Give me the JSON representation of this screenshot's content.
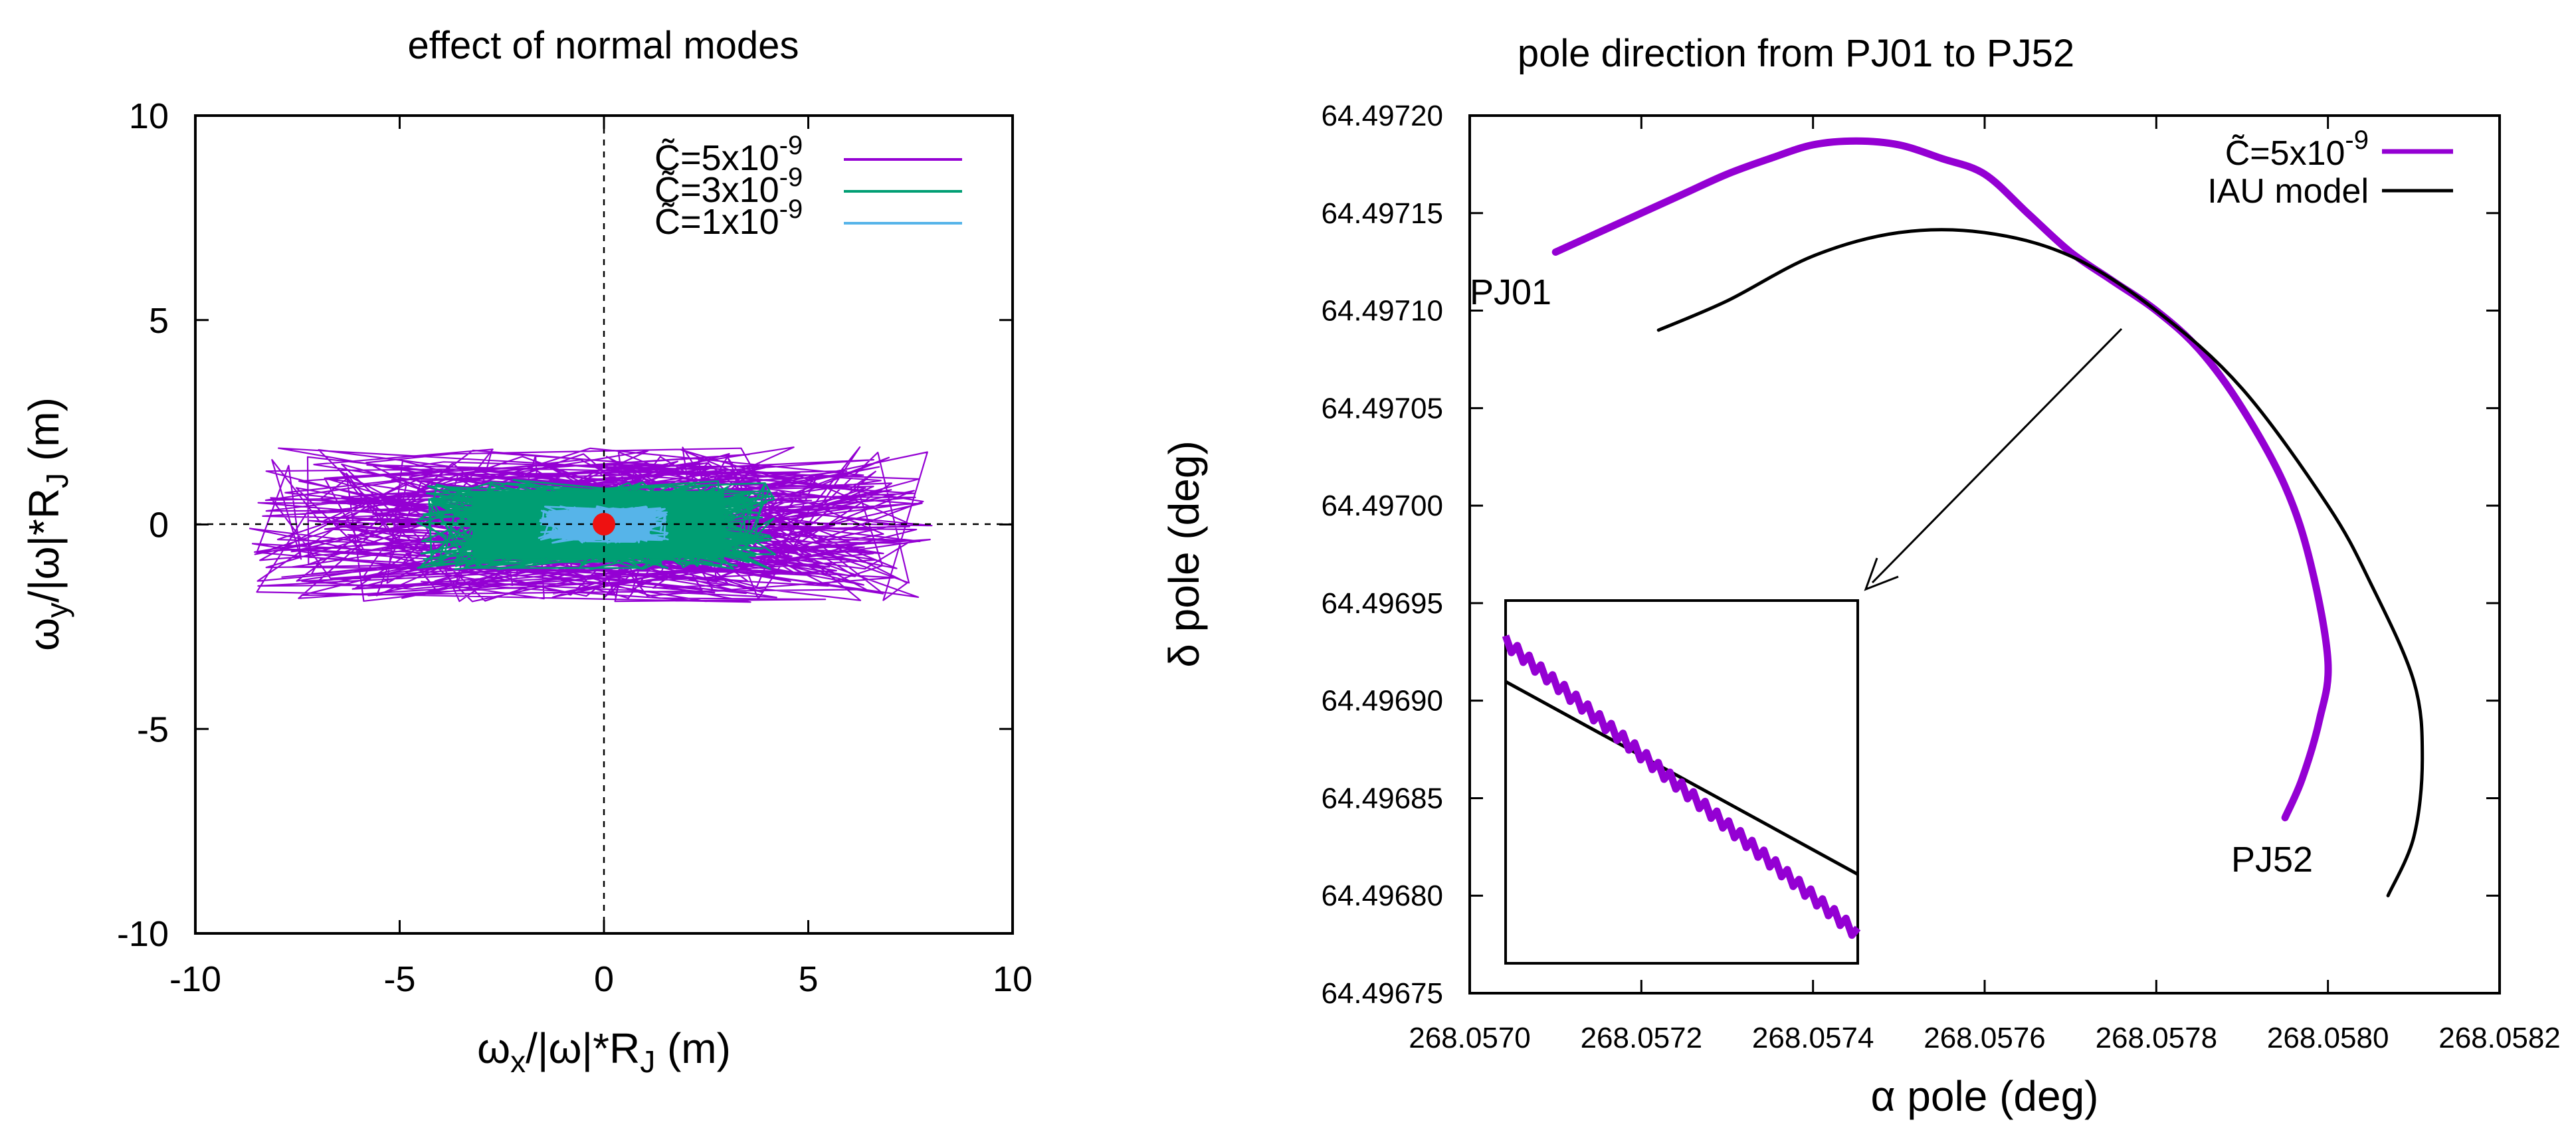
{
  "colors": {
    "purple": "#9400d3",
    "green": "#009e73",
    "blue": "#56b4e9",
    "red": "#ee1111",
    "black": "#000000"
  },
  "chart_data": [
    {
      "type": "scatter",
      "title": "effect of normal modes",
      "xlabel": "ωx/|ω|*RJ (m)",
      "ylabel": "ωy/|ω|*RJ (m)",
      "xlim": [
        -10,
        10
      ],
      "ylim": [
        -10,
        10
      ],
      "xticks": [
        -10,
        -5,
        0,
        5,
        10
      ],
      "yticks": [
        -10,
        -5,
        0,
        5,
        10
      ],
      "zero_lines": "dashed",
      "legend_position": "top-right",
      "series": [
        {
          "name": "C̃=5x10-9",
          "color": "#9400d3",
          "x_range": [
            -8.7,
            8.1
          ],
          "y_range": [
            -1.9,
            1.9
          ]
        },
        {
          "name": "C̃=3x10-9",
          "color": "#009e73",
          "x_range": [
            -4.6,
            4.2
          ],
          "y_range": [
            -1.1,
            1.1
          ]
        },
        {
          "name": "C̃=1x10-9",
          "color": "#56b4e9",
          "x_range": [
            -1.6,
            1.6
          ],
          "y_range": [
            -0.45,
            0.45
          ]
        }
      ],
      "marker": {
        "x": 0,
        "y": 0,
        "color": "#ee1111"
      }
    },
    {
      "type": "line",
      "title": "pole direction from PJ01 to PJ52",
      "xlabel": "α pole (deg)",
      "ylabel": "δ pole (deg)",
      "xlim": [
        268.057,
        268.0582
      ],
      "ylim": [
        64.49675,
        64.4972
      ],
      "xticks": [
        "268.0570",
        "268.0572",
        "268.0574",
        "268.0576",
        "268.0578",
        "268.0580",
        "268.0582"
      ],
      "yticks": [
        "64.49675",
        "64.49680",
        "64.49685",
        "64.49690",
        "64.49695",
        "64.49700",
        "64.49705",
        "64.49710",
        "64.49715",
        "64.49720"
      ],
      "legend_position": "top-right",
      "series": [
        {
          "name": "C̃=5x10-9",
          "color": "#9400d3",
          "x": [
            268.0571,
            268.05715,
            268.0572,
            268.05725,
            268.0573,
            268.05735,
            268.0574,
            268.05745,
            268.0575,
            268.05755,
            268.0576,
            268.05765,
            268.0577,
            268.05775,
            268.0578,
            268.05785,
            268.0579,
            268.05795,
            268.05798,
            268.058,
            268.05799,
            268.05797,
            268.05795
          ],
          "y": [
            64.49713,
            64.49714,
            64.49715,
            64.49716,
            64.49717,
            64.497178,
            64.497185,
            64.497187,
            64.497185,
            64.497178,
            64.49717,
            64.49715,
            64.49713,
            64.497115,
            64.4971,
            64.49708,
            64.49705,
            64.49701,
            64.49697,
            64.49692,
            64.49689,
            64.49686,
            64.49684
          ]
        },
        {
          "name": "IAU model",
          "color": "#000000",
          "x": [
            268.05722,
            268.0573,
            268.0574,
            268.0575,
            268.0576,
            268.0577,
            268.0578,
            268.0579,
            268.058,
            268.05805,
            268.0581,
            268.05811,
            268.0581,
            268.05807
          ],
          "y": [
            64.49709,
            64.497105,
            64.497128,
            64.49714,
            64.49714,
            64.497128,
            64.4971,
            64.49706,
            64.497,
            64.49696,
            64.49691,
            64.49687,
            64.49683,
            64.4968
          ]
        }
      ],
      "annotations": [
        {
          "text": "PJ01",
          "x": 268.05711,
          "y": 64.49711
        },
        {
          "text": "PJ52",
          "x": 268.05793,
          "y": 64.49681
        }
      ],
      "inset": "zoom of crossing near 268.05778, 64.49711"
    }
  ]
}
